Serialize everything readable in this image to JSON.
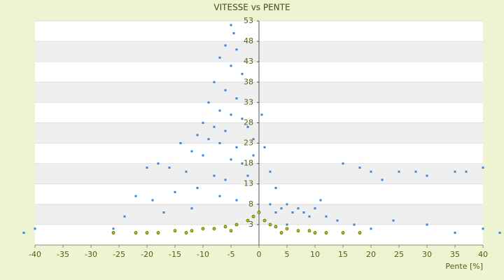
{
  "chart_data": {
    "type": "scatter",
    "title": "VITESSE vs PENTE",
    "x_label": "Pente [%]",
    "xlim": [
      -40,
      40
    ],
    "xticks": [
      -40,
      -35,
      -30,
      -25,
      -20,
      -15,
      -10,
      -5,
      0,
      5,
      10,
      15,
      20,
      25,
      30,
      35,
      40
    ],
    "ylim": [
      -2,
      53
    ],
    "yticks": [
      3,
      8,
      13,
      18,
      23,
      28,
      33,
      38,
      43,
      48,
      53
    ],
    "grid": true,
    "series": [
      {
        "color": "#3a86d6",
        "x": [
          -5,
          -4.5,
          -6,
          -4,
          -7,
          -5,
          -3,
          -8,
          -6,
          -4,
          -9,
          -7,
          -5,
          -3,
          -10,
          -8,
          -6,
          -2,
          -11,
          -9,
          -7,
          -4,
          -1,
          -14,
          -12,
          -10,
          -5,
          -3,
          -1,
          -18,
          -16,
          -13,
          -8,
          -6,
          -2,
          0.5,
          1,
          2,
          3,
          -20,
          -22,
          -19,
          -15,
          -11,
          -7,
          -4,
          -24,
          -17,
          -12,
          -26,
          2,
          3,
          4,
          5,
          6,
          7,
          8,
          9,
          10,
          12,
          14,
          15,
          18,
          20,
          22,
          25,
          28,
          30,
          35,
          37,
          40,
          24,
          30,
          35,
          40,
          43,
          -42,
          -40,
          1,
          5,
          11,
          17,
          20
        ],
        "y": [
          52,
          50,
          47,
          46,
          44,
          42,
          40,
          38,
          36,
          34,
          33,
          31,
          30,
          29,
          28,
          27,
          26,
          27,
          25,
          24,
          23,
          22,
          24,
          23,
          21,
          20,
          19,
          18,
          20,
          18,
          17,
          16,
          15,
          14,
          15,
          30,
          22,
          16,
          12,
          17,
          10,
          9,
          11,
          12,
          10,
          9,
          5,
          6,
          7,
          2,
          8,
          6,
          7,
          8,
          6,
          7,
          6,
          5,
          7,
          5,
          4,
          18,
          17,
          16,
          14,
          16,
          16,
          15,
          16,
          16,
          17,
          4,
          3,
          1,
          2,
          1,
          1,
          2,
          4,
          3,
          9,
          3,
          2
        ]
      },
      {
        "color": "#b8bf10",
        "x": [
          -26,
          -22,
          -18,
          -15,
          -12,
          -10,
          -8,
          -6,
          -4,
          -2,
          -1,
          0,
          1,
          2,
          3,
          5,
          7,
          9,
          12,
          15,
          18,
          -20,
          -13,
          -5,
          4,
          10
        ],
        "y": [
          1,
          1,
          1,
          1.5,
          1.5,
          2,
          2,
          2.5,
          3,
          4,
          5,
          6,
          4,
          3,
          2.5,
          2,
          1.5,
          1.5,
          1,
          1,
          1,
          1,
          1,
          1.5,
          1,
          1
        ]
      }
    ]
  }
}
